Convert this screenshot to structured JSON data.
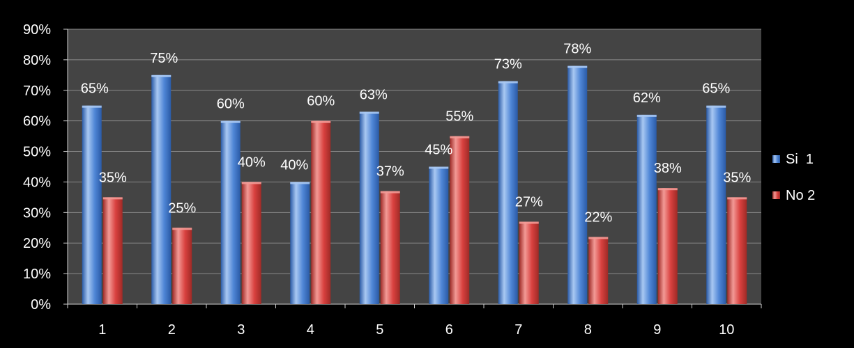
{
  "chart_data": {
    "type": "bar",
    "categories": [
      "1",
      "2",
      "3",
      "4",
      "5",
      "6",
      "7",
      "8",
      "9",
      "10"
    ],
    "series": [
      {
        "name": "Si  1",
        "values": [
          65,
          75,
          60,
          40,
          63,
          45,
          73,
          78,
          62,
          65
        ]
      },
      {
        "name": "No 2",
        "values": [
          35,
          25,
          40,
          60,
          37,
          55,
          27,
          22,
          38,
          35
        ]
      }
    ],
    "ylim": [
      0,
      90
    ],
    "yticks": [
      0,
      10,
      20,
      30,
      40,
      50,
      60,
      70,
      80,
      90
    ],
    "value_suffix": "%",
    "grid": true,
    "legend_position": "right",
    "colors": {
      "background": "#000000",
      "plot_background": "#444444",
      "grid": "#8a8a8a",
      "series": [
        "#4f86d6",
        "#d9413f"
      ],
      "series_light": [
        "#a9c8f2",
        "#f29a96"
      ],
      "series_dark": [
        "#2a5aa6",
        "#9e2a26"
      ],
      "text": "#ffffff"
    }
  }
}
